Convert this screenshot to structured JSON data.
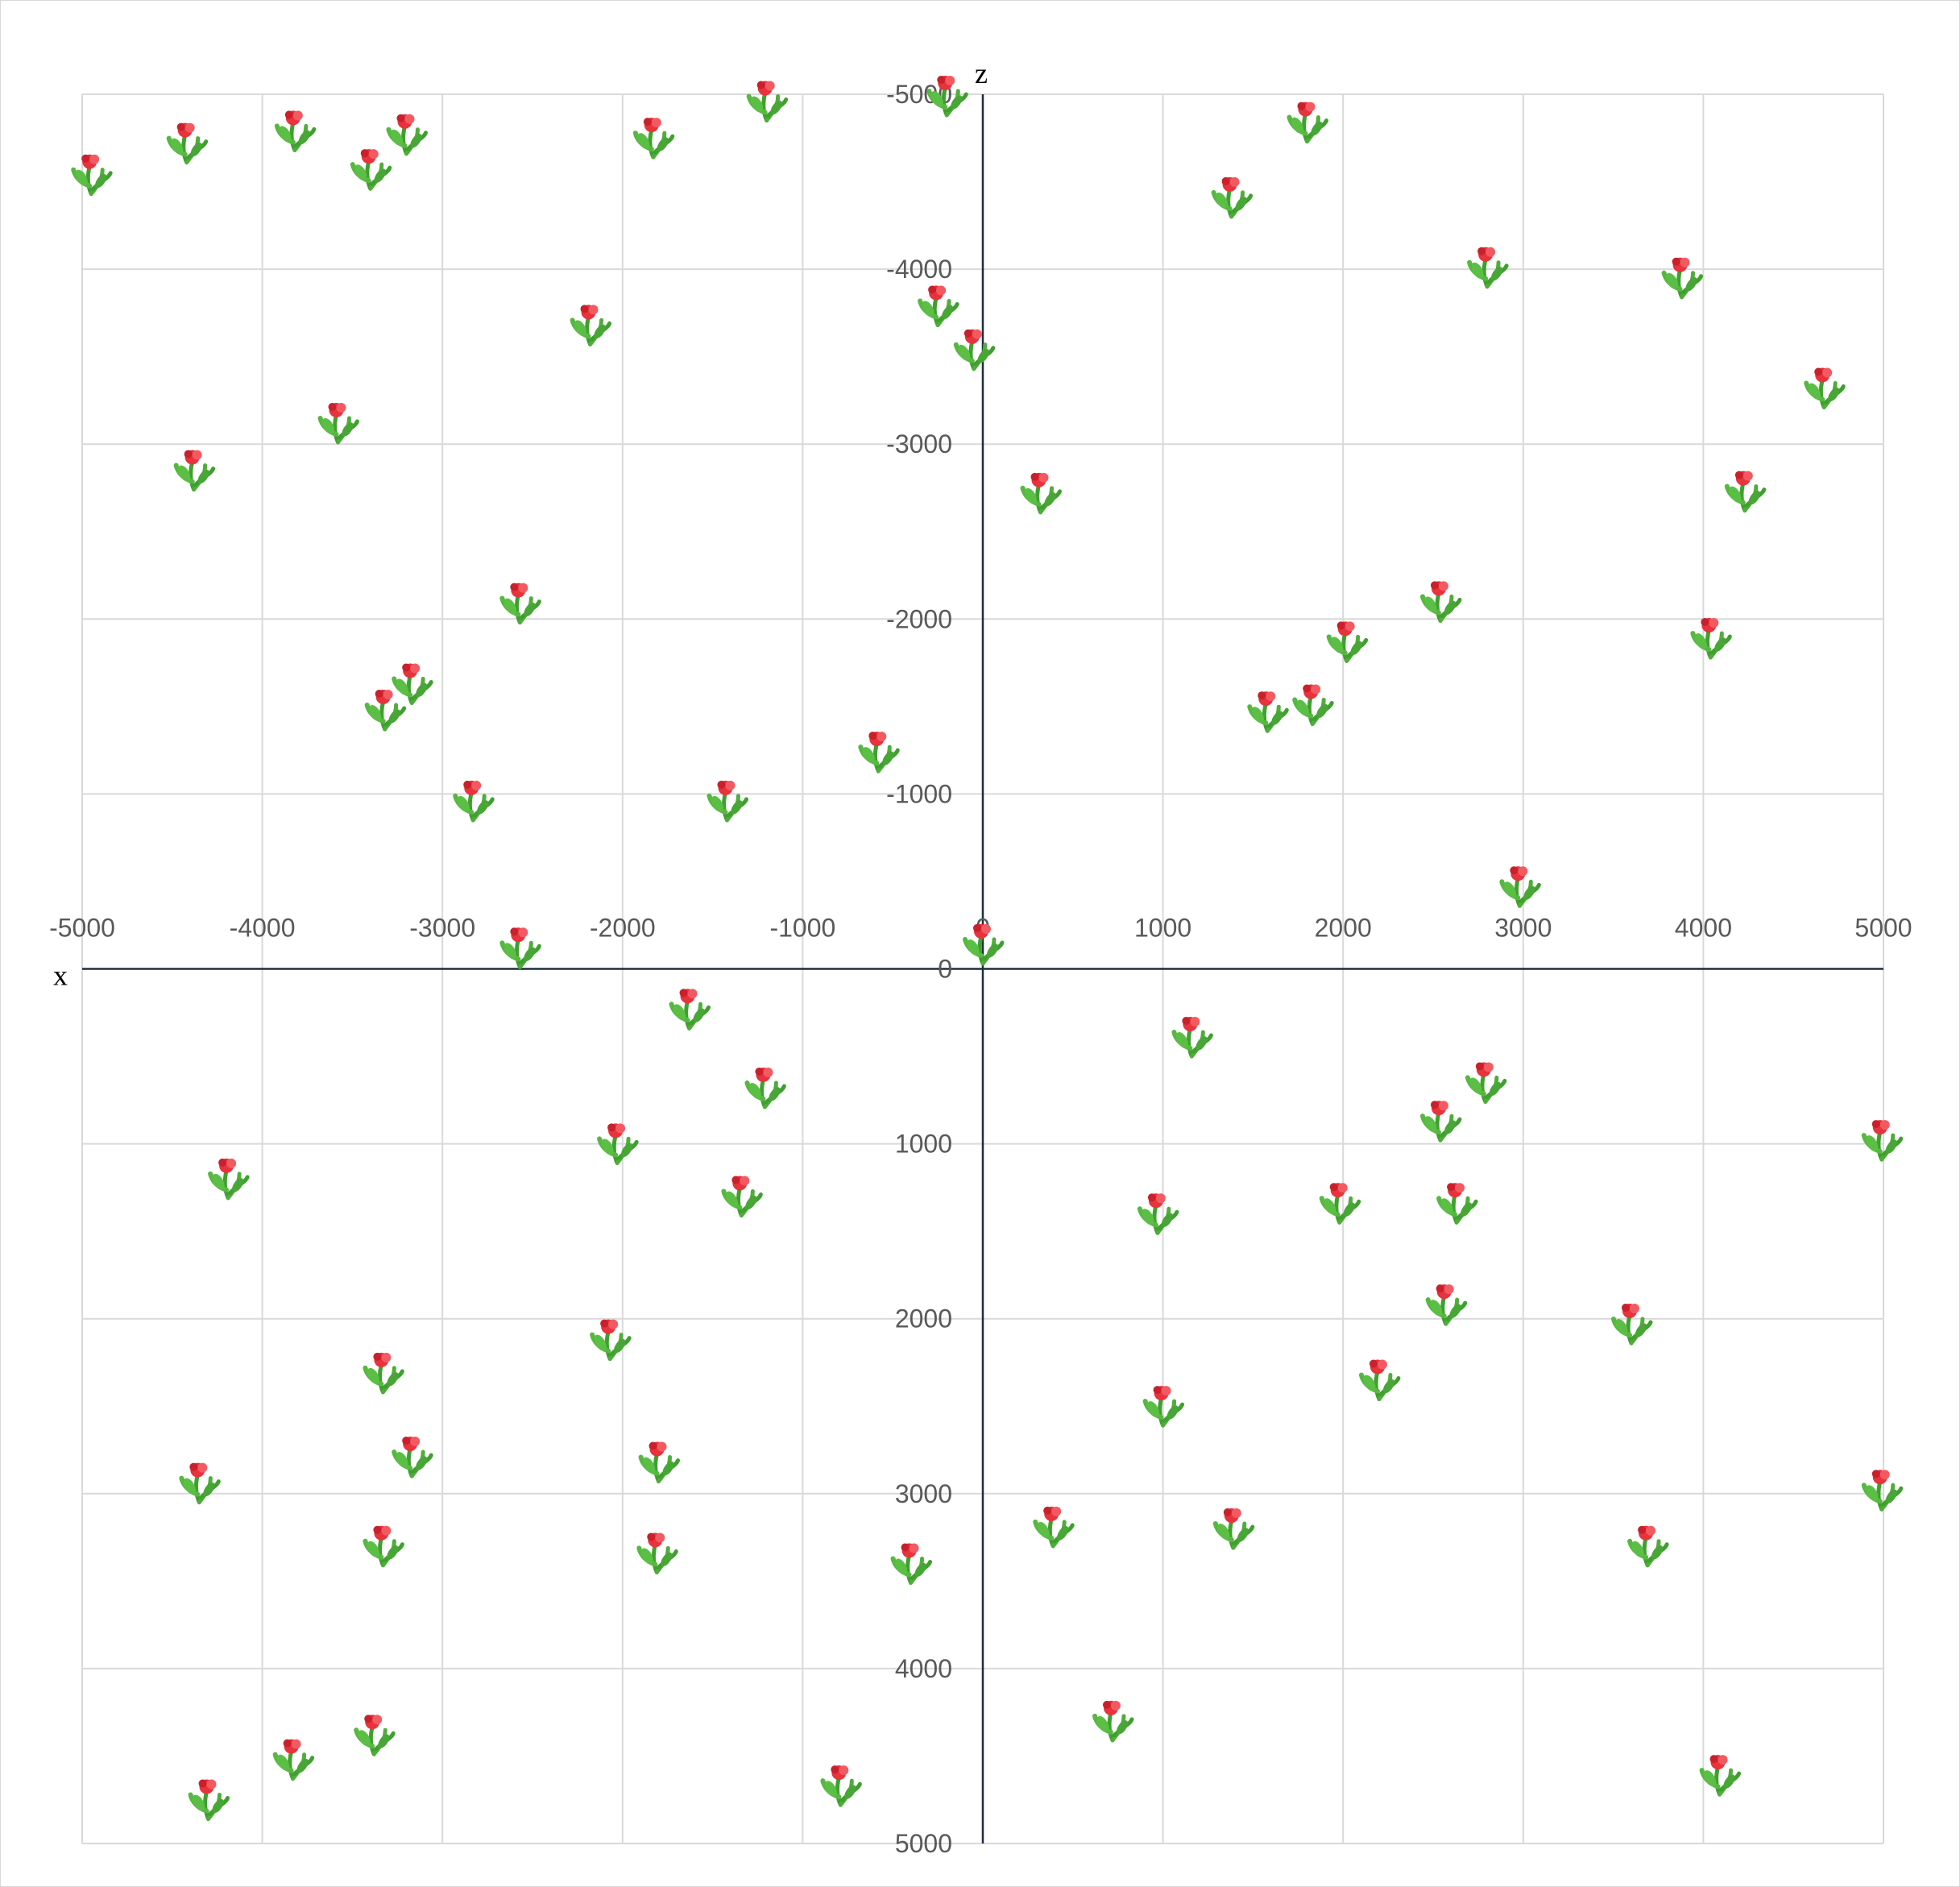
{
  "chart_data": {
    "type": "scatter",
    "title": "",
    "xlabel": "x",
    "ylabel": "z",
    "xlim": [
      -5000,
      5000
    ],
    "ylim": [
      -5000,
      5000
    ],
    "y_axis_inverted": true,
    "grid": true,
    "x_ticks": [
      "-5000",
      "-4000",
      "-3000",
      "-2000",
      "-1000",
      "0",
      "1000",
      "2000",
      "3000",
      "4000",
      "5000"
    ],
    "z_ticks": [
      "-5000",
      "-4000",
      "-3000",
      "-2000",
      "-1000",
      "0",
      "1000",
      "2000",
      "3000",
      "4000",
      "5000"
    ],
    "marker": "flower-icon",
    "colors": {
      "grid": "#d9d9d9",
      "axis": "#1f2d3d",
      "stem": "#3f9f2f",
      "petal": "#e8323c",
      "tick_text": "#595959"
    },
    "series": [
      {
        "points": [
          [
            -4950,
            -4550
          ],
          [
            -4420,
            -4730
          ],
          [
            -3820,
            -4800
          ],
          [
            -3400,
            -4580
          ],
          [
            -3200,
            -4780
          ],
          [
            -1830,
            -4760
          ],
          [
            -1200,
            -4970
          ],
          [
            -200,
            -5000
          ],
          [
            1800,
            -4850
          ],
          [
            1380,
            -4420
          ],
          [
            -2180,
            -3690
          ],
          [
            -250,
            -3800
          ],
          [
            -50,
            -3550
          ],
          [
            2800,
            -4020
          ],
          [
            3880,
            -3960
          ],
          [
            4670,
            -3330
          ],
          [
            -3580,
            -3130
          ],
          [
            -4380,
            -2860
          ],
          [
            320,
            -2730
          ],
          [
            4230,
            -2740
          ],
          [
            -2570,
            -2100
          ],
          [
            2540,
            -2110
          ],
          [
            4040,
            -1900
          ],
          [
            2020,
            -1880
          ],
          [
            -3170,
            -1640
          ],
          [
            -3320,
            -1490
          ],
          [
            1580,
            -1480
          ],
          [
            1830,
            -1520
          ],
          [
            -580,
            -1250
          ],
          [
            -2830,
            -970
          ],
          [
            -1420,
            -970
          ],
          [
            2980,
            -480
          ],
          [
            -2570,
            -130
          ],
          [
            0,
            -150
          ],
          [
            -1630,
            220
          ],
          [
            1160,
            380
          ],
          [
            -1210,
            670
          ],
          [
            2790,
            640
          ],
          [
            2540,
            860
          ],
          [
            -2030,
            990
          ],
          [
            4990,
            970
          ],
          [
            -4190,
            1190
          ],
          [
            -1340,
            1290
          ],
          [
            970,
            1390
          ],
          [
            1980,
            1330
          ],
          [
            2630,
            1330
          ],
          [
            2570,
            1910
          ],
          [
            3600,
            2020
          ],
          [
            -2070,
            2110
          ],
          [
            -3330,
            2300
          ],
          [
            2200,
            2340
          ],
          [
            1000,
            2490
          ],
          [
            -3170,
            2780
          ],
          [
            -1800,
            2810
          ],
          [
            -4350,
            2930
          ],
          [
            4990,
            2970
          ],
          [
            390,
            3180
          ],
          [
            1390,
            3190
          ],
          [
            -3330,
            3290
          ],
          [
            -1810,
            3330
          ],
          [
            -400,
            3390
          ],
          [
            3690,
            3290
          ],
          [
            720,
            4290
          ],
          [
            -3380,
            4370
          ],
          [
            -3830,
            4510
          ],
          [
            -4300,
            4740
          ],
          [
            -790,
            4660
          ],
          [
            4090,
            4600
          ]
        ]
      }
    ]
  }
}
